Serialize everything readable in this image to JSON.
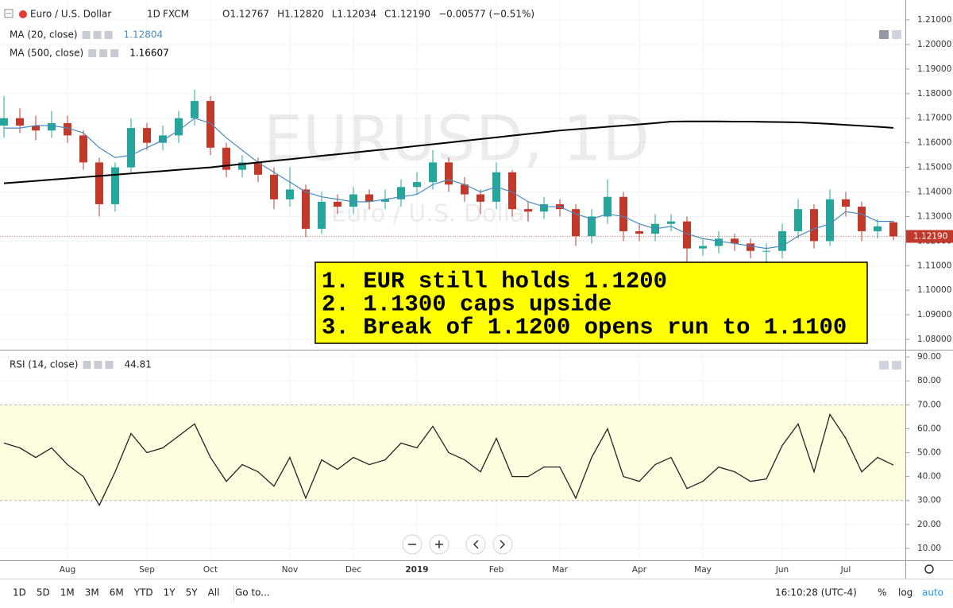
{
  "chart_data": [
    {
      "type": "candlestick",
      "symbol": "Euro / U.S. Dollar",
      "interval": "1D",
      "source": "FXCM",
      "ohlc_texts": [
        "O1.12767",
        "H1.12820",
        "L1.12034",
        "C1.12190",
        "−0.00577 (−0.51%)"
      ],
      "watermark": "EURUSD, 1D",
      "watermark_sub": "Euro / U.S. Dollar",
      "categories": [
        null,
        null,
        null,
        null,
        "Aug",
        null,
        null,
        null,
        null,
        "Sep",
        null,
        null,
        null,
        "Oct",
        null,
        null,
        null,
        null,
        "Nov",
        null,
        null,
        null,
        "Dec",
        null,
        null,
        null,
        "2019",
        null,
        null,
        null,
        null,
        "Feb",
        null,
        null,
        null,
        "Mar",
        null,
        null,
        null,
        null,
        "Apr",
        null,
        null,
        null,
        "May",
        null,
        null,
        null,
        null,
        "Jun",
        null,
        null,
        null,
        "Jul",
        null,
        null,
        null
      ],
      "open": [
        1.167,
        1.17,
        1.167,
        1.165,
        1.168,
        1.163,
        1.152,
        1.135,
        1.15,
        1.166,
        1.16,
        1.163,
        1.17,
        1.177,
        1.158,
        1.149,
        1.152,
        1.147,
        1.137,
        1.141,
        1.125,
        1.136,
        1.134,
        1.139,
        1.136,
        1.137,
        1.142,
        1.144,
        1.152,
        1.143,
        1.139,
        1.136,
        1.148,
        1.133,
        1.132,
        1.135,
        1.133,
        1.122,
        1.13,
        1.138,
        1.124,
        1.123,
        1.127,
        1.128,
        1.117,
        1.118,
        1.121,
        1.119,
        1.116,
        1.116,
        1.124,
        1.133,
        1.12,
        1.137,
        1.134,
        1.124,
        1.12767
      ],
      "high": [
        1.179,
        1.174,
        1.171,
        1.173,
        1.171,
        1.165,
        1.154,
        1.152,
        1.17,
        1.168,
        1.167,
        1.173,
        1.1815,
        1.179,
        1.16,
        1.155,
        1.154,
        1.15,
        1.15,
        1.143,
        1.14,
        1.139,
        1.142,
        1.141,
        1.141,
        1.145,
        1.148,
        1.157,
        1.154,
        1.146,
        1.141,
        1.152,
        1.149,
        1.136,
        1.138,
        1.137,
        1.135,
        1.133,
        1.145,
        1.14,
        1.127,
        1.131,
        1.131,
        1.13,
        1.121,
        1.124,
        1.123,
        1.121,
        1.119,
        1.127,
        1.137,
        1.135,
        1.141,
        1.14,
        1.136,
        1.129,
        1.1282
      ],
      "low": [
        1.162,
        1.164,
        1.161,
        1.162,
        1.16,
        1.149,
        1.13,
        1.132,
        1.148,
        1.157,
        1.157,
        1.16,
        1.167,
        1.155,
        1.146,
        1.146,
        1.144,
        1.133,
        1.134,
        1.1216,
        1.123,
        1.131,
        1.131,
        1.133,
        1.133,
        1.134,
        1.139,
        1.141,
        1.14,
        1.136,
        1.131,
        1.133,
        1.13,
        1.128,
        1.129,
        1.13,
        1.118,
        1.119,
        1.127,
        1.12,
        1.12,
        1.12,
        1.124,
        1.111,
        1.114,
        1.115,
        1.116,
        1.113,
        1.11,
        1.113,
        1.121,
        1.117,
        1.118,
        1.13,
        1.12,
        1.121,
        1.12034
      ],
      "close": [
        1.17,
        1.167,
        1.165,
        1.168,
        1.163,
        1.152,
        1.135,
        1.15,
        1.166,
        1.16,
        1.163,
        1.17,
        1.177,
        1.158,
        1.149,
        1.152,
        1.147,
        1.137,
        1.141,
        1.125,
        1.136,
        1.134,
        1.139,
        1.136,
        1.137,
        1.142,
        1.144,
        1.152,
        1.143,
        1.139,
        1.136,
        1.148,
        1.133,
        1.132,
        1.135,
        1.133,
        1.122,
        1.13,
        1.138,
        1.124,
        1.123,
        1.127,
        1.128,
        1.117,
        1.118,
        1.121,
        1.119,
        1.116,
        1.116,
        1.124,
        1.133,
        1.12,
        1.137,
        1.134,
        1.124,
        1.126,
        1.1219
      ],
      "up_color": "#26a69a",
      "down_color": "#c0392b",
      "last_value_label": "1.12190",
      "overlays": [
        {
          "name": "MA (20, close)",
          "color": "#4a8bbd",
          "values": [
            1.166,
            1.166,
            1.167,
            1.167,
            1.166,
            1.164,
            1.158,
            1.154,
            1.155,
            1.158,
            1.161,
            1.165,
            1.17,
            1.168,
            1.162,
            1.157,
            1.152,
            1.148,
            1.144,
            1.14,
            1.138,
            1.137,
            1.136,
            1.136,
            1.137,
            1.138,
            1.139,
            1.143,
            1.145,
            1.143,
            1.14,
            1.142,
            1.14,
            1.136,
            1.134,
            1.134,
            1.131,
            1.129,
            1.131,
            1.13,
            1.127,
            1.125,
            1.126,
            1.123,
            1.121,
            1.12,
            1.119,
            1.118,
            1.117,
            1.118,
            1.122,
            1.125,
            1.127,
            1.132,
            1.131,
            1.128,
            1.12804
          ]
        },
        {
          "name": "MA (500, close)",
          "color": "#000000",
          "values": [
            1.1435,
            1.144,
            1.1445,
            1.145,
            1.1455,
            1.146,
            1.1465,
            1.147,
            1.1475,
            1.148,
            1.1485,
            1.149,
            1.1495,
            1.15,
            1.1507,
            1.1513,
            1.152,
            1.1527,
            1.1533,
            1.154,
            1.1547,
            1.1553,
            1.156,
            1.1567,
            1.1573,
            1.158,
            1.1587,
            1.1594,
            1.1601,
            1.1608,
            1.1615,
            1.1622,
            1.1629,
            1.1636,
            1.1643,
            1.165,
            1.1655,
            1.166,
            1.1665,
            1.167,
            1.1675,
            1.168,
            1.1686,
            1.1687,
            1.1687,
            1.1687,
            1.1686,
            1.1686,
            1.1685,
            1.1684,
            1.1683,
            1.168,
            1.1677,
            1.1673,
            1.1669,
            1.1665,
            1.16607
          ]
        }
      ],
      "annotation": [
        "1. EUR still holds 1.1200",
        "2. 1.1300 caps upside",
        "3. Break of 1.1200 opens run to 1.1100"
      ],
      "ylim": [
        1.0758,
        1.2181
      ],
      "yticks": [
        {
          "value": 1.08,
          "label": "1.08000"
        },
        {
          "value": 1.09,
          "label": "1.09000"
        },
        {
          "value": 1.1,
          "label": "1.10000"
        },
        {
          "value": 1.11,
          "label": "1.11000"
        },
        {
          "value": 1.12,
          "label": "1.12000"
        },
        {
          "value": 1.13,
          "label": "1.13000"
        },
        {
          "value": 1.14,
          "label": "1.14000"
        },
        {
          "value": 1.15,
          "label": "1.15000"
        },
        {
          "value": 1.16,
          "label": "1.16000"
        },
        {
          "value": 1.17,
          "label": "1.17000"
        },
        {
          "value": 1.18,
          "label": "1.18000"
        },
        {
          "value": 1.19,
          "label": "1.19000"
        },
        {
          "value": 1.2,
          "label": "1.20000"
        },
        {
          "value": 1.21,
          "label": "1.21000"
        }
      ],
      "grid": true
    },
    {
      "type": "line",
      "name": "RSI (14, close)",
      "color": "#222222",
      "values": [
        54,
        52,
        48,
        52,
        45,
        40,
        28,
        42,
        58,
        50,
        52,
        57,
        62,
        48,
        38,
        45,
        42,
        36,
        48,
        31,
        47,
        43,
        48,
        45,
        47,
        54,
        52,
        61,
        50,
        47,
        42,
        56,
        40,
        40,
        44,
        44,
        31,
        48,
        60,
        40,
        38,
        45,
        48,
        35,
        38,
        44,
        42,
        38,
        39,
        53,
        62,
        42,
        66,
        56,
        42,
        48,
        44.81
      ],
      "band": [
        30,
        70
      ],
      "band_color": "#fffde0",
      "ylim": [
        5,
        92.7
      ],
      "yticks": [
        {
          "value": 10,
          "label": "10.00"
        },
        {
          "value": 20,
          "label": "20.00"
        },
        {
          "value": 30,
          "label": "30.00"
        },
        {
          "value": 40,
          "label": "40.00"
        },
        {
          "value": 50,
          "label": "50.00"
        },
        {
          "value": 60,
          "label": "60.00"
        },
        {
          "value": 70,
          "label": "70.00"
        },
        {
          "value": 80,
          "label": "80.00"
        },
        {
          "value": 90,
          "label": "90.00"
        }
      ],
      "grid": true
    }
  ],
  "toolbar": {
    "ranges": [
      "1D",
      "5D",
      "1M",
      "3M",
      "6M",
      "YTD",
      "1Y",
      "5Y",
      "All"
    ],
    "goto": "Go to...",
    "clock": "16:10:28 (UTC-4)",
    "percent": "%",
    "log": "log",
    "auto": "auto"
  }
}
